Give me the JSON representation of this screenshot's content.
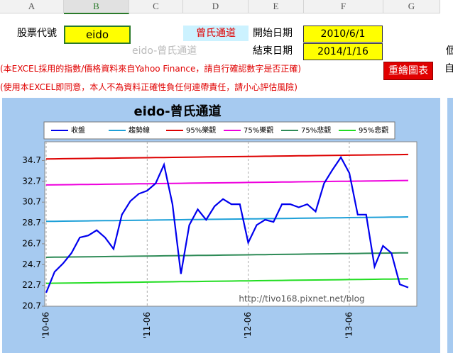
{
  "columns": [
    "A",
    "B",
    "C",
    "D",
    "E",
    "F",
    "G"
  ],
  "cells": {
    "stock_label": "股票代號",
    "stock_code": "eido",
    "method": "曾氏通道",
    "start_label": "開始日期",
    "start_date": "2010/6/1",
    "chart_name": "eido-曾氏通道",
    "end_label": "結束日期",
    "end_date": "2014/1/16",
    "note1": "(本EXCEL採用的指數/價格資料來自Yahoo Finance，請自行確認數字是否正確)",
    "note2": "(使用本EXCEL即同意，本人不為資料正確性負任何連帶責任，請小心評估風險)",
    "button": "重繪圖表",
    "partial1": "個",
    "partial2": "自"
  },
  "chart_data": {
    "type": "line",
    "title": "eido-曾氏通道",
    "annotation": "http://tivo168.pixnet.net/blog",
    "categories": [
      "'10-06",
      null,
      null,
      null,
      null,
      null,
      null,
      null,
      null,
      null,
      null,
      null,
      "'11-06",
      null,
      null,
      null,
      null,
      null,
      null,
      null,
      null,
      null,
      null,
      null,
      "'12-06",
      null,
      null,
      null,
      null,
      null,
      null,
      null,
      null,
      null,
      null,
      null,
      "'13-06",
      null,
      null,
      null,
      null,
      null,
      null,
      null
    ],
    "ylim": [
      20.7,
      36.5
    ],
    "yticks": [
      20.7,
      22.7,
      24.7,
      26.7,
      28.7,
      30.7,
      32.7,
      34.7
    ],
    "grid": true,
    "series": [
      {
        "name": "收盤",
        "color": "#0000ee",
        "values": [
          22.0,
          24.0,
          24.8,
          25.8,
          27.3,
          27.5,
          28.0,
          27.3,
          26.2,
          29.5,
          30.8,
          31.5,
          31.8,
          32.5,
          34.3,
          30.5,
          23.8,
          28.5,
          30.0,
          29.0,
          30.3,
          31.0,
          30.5,
          30.5,
          26.8,
          28.5,
          29.0,
          28.8,
          30.5,
          30.5,
          30.2,
          30.5,
          29.8,
          32.5,
          33.8,
          35.0,
          33.5,
          29.5,
          29.5,
          24.5,
          26.5,
          25.8,
          22.8,
          22.5
        ]
      },
      {
        "name": "趨勢線",
        "color": "#1ea0d8",
        "values": [
          28.85,
          28.86,
          28.87,
          28.88,
          28.89,
          28.9,
          28.91,
          28.92,
          28.93,
          28.94,
          28.95,
          28.96,
          28.97,
          28.98,
          28.99,
          29.0,
          29.01,
          29.02,
          29.03,
          29.04,
          29.05,
          29.06,
          29.07,
          29.08,
          29.09,
          29.1,
          29.11,
          29.12,
          29.13,
          29.14,
          29.15,
          29.16,
          29.17,
          29.18,
          29.19,
          29.2,
          29.21,
          29.22,
          29.23,
          29.24,
          29.25,
          29.26,
          29.27,
          29.28
        ]
      },
      {
        "name": "95%樂觀",
        "color": "#dd0000",
        "values": [
          34.85,
          34.86,
          34.87,
          34.88,
          34.89,
          34.9,
          34.91,
          34.92,
          34.93,
          34.94,
          34.95,
          34.96,
          34.97,
          34.98,
          34.99,
          35.0,
          35.01,
          35.02,
          35.03,
          35.04,
          35.05,
          35.06,
          35.07,
          35.08,
          35.09,
          35.1,
          35.11,
          35.12,
          35.13,
          35.14,
          35.15,
          35.16,
          35.17,
          35.18,
          35.19,
          35.2,
          35.21,
          35.22,
          35.23,
          35.24,
          35.25,
          35.26,
          35.27,
          35.28
        ]
      },
      {
        "name": "75%樂觀",
        "color": "#ee00dd",
        "values": [
          32.35,
          32.36,
          32.37,
          32.38,
          32.39,
          32.4,
          32.41,
          32.42,
          32.43,
          32.44,
          32.45,
          32.46,
          32.47,
          32.48,
          32.49,
          32.5,
          32.51,
          32.52,
          32.53,
          32.54,
          32.55,
          32.56,
          32.57,
          32.58,
          32.59,
          32.6,
          32.61,
          32.62,
          32.63,
          32.64,
          32.65,
          32.66,
          32.67,
          32.68,
          32.69,
          32.7,
          32.71,
          32.72,
          32.73,
          32.74,
          32.75,
          32.76,
          32.77,
          32.78
        ]
      },
      {
        "name": "75%悲觀",
        "color": "#2e8b57",
        "values": [
          25.4,
          25.41,
          25.42,
          25.43,
          25.44,
          25.45,
          25.46,
          25.47,
          25.48,
          25.49,
          25.5,
          25.51,
          25.52,
          25.53,
          25.54,
          25.55,
          25.56,
          25.57,
          25.58,
          25.59,
          25.6,
          25.61,
          25.62,
          25.63,
          25.64,
          25.65,
          25.66,
          25.67,
          25.68,
          25.69,
          25.7,
          25.71,
          25.72,
          25.73,
          25.74,
          25.75,
          25.76,
          25.77,
          25.78,
          25.79,
          25.8,
          25.81,
          25.82,
          25.83
        ]
      },
      {
        "name": "95%悲觀",
        "color": "#22dd22",
        "values": [
          22.9,
          22.91,
          22.92,
          22.93,
          22.94,
          22.95,
          22.96,
          22.97,
          22.98,
          22.99,
          23.0,
          23.01,
          23.02,
          23.03,
          23.04,
          23.05,
          23.06,
          23.07,
          23.08,
          23.09,
          23.1,
          23.11,
          23.12,
          23.13,
          23.14,
          23.15,
          23.16,
          23.17,
          23.18,
          23.19,
          23.2,
          23.21,
          23.22,
          23.23,
          23.24,
          23.25,
          23.26,
          23.27,
          23.28,
          23.29,
          23.3,
          23.31,
          23.32,
          23.33
        ]
      }
    ]
  }
}
